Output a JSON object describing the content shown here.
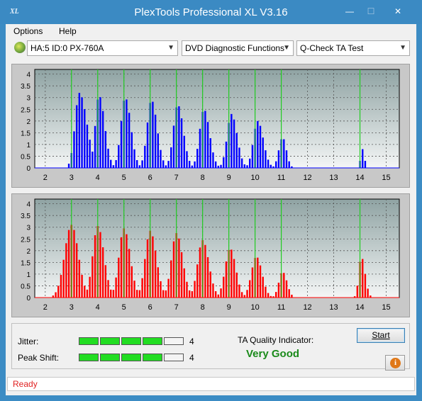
{
  "window": {
    "logo": "XL",
    "title": "PlexTools Professional XL V3.16",
    "min_glyph": "—",
    "max_glyph": "☐",
    "close_glyph": "✕"
  },
  "menu": {
    "options": "Options",
    "help": "Help"
  },
  "toolbar": {
    "drive": "HA:5 ID:0  PX-760A",
    "function": "DVD Diagnostic Functions",
    "test": "Q-Check TA Test"
  },
  "results": {
    "jitter_label": "Jitter:",
    "jitter_value": "4",
    "jitter_level": 4,
    "jitter_max": 5,
    "peak_label": "Peak Shift:",
    "peak_value": "4",
    "peak_level": 4,
    "peak_max": 5,
    "ta_label": "TA Quality Indicator:",
    "ta_value": "Very Good",
    "start_label": "Start",
    "info_glyph": "i"
  },
  "status": {
    "text": "Ready"
  },
  "colors": {
    "top_series": "#0000ff",
    "bottom_series": "#ff0000",
    "marker_lines": "#22cc22",
    "meter_on": "#22dd22",
    "ta_value": "#1a8a1a",
    "status_text": "#e02020"
  },
  "chart_data": [
    {
      "type": "area",
      "name": "top",
      "xlim": [
        1.6,
        15.5
      ],
      "ylim": [
        0,
        4.2
      ],
      "x_ticks": [
        2,
        3,
        4,
        5,
        6,
        7,
        8,
        9,
        10,
        11,
        12,
        13,
        14,
        15
      ],
      "y_ticks": [
        0,
        0.5,
        1,
        1.5,
        2,
        2.5,
        3,
        3.5,
        4
      ],
      "y_tick_labels": [
        "0",
        "0.5",
        "1",
        "1.5",
        "2",
        "2.5",
        "3",
        "3.5",
        "4"
      ],
      "marker_lines": [
        3,
        4,
        5,
        6,
        7,
        8,
        9,
        10,
        11,
        14
      ],
      "grid": true,
      "peaks": [
        {
          "center": 3.3,
          "height": 3.2,
          "left_width": 0.35,
          "right_width": 0.6
        },
        {
          "center": 4.05,
          "height": 3.1,
          "left_width": 0.3,
          "right_width": 0.45
        },
        {
          "center": 5.05,
          "height": 3.0,
          "left_width": 0.35,
          "right_width": 0.45
        },
        {
          "center": 6.05,
          "height": 2.9,
          "left_width": 0.35,
          "right_width": 0.45
        },
        {
          "center": 7.05,
          "height": 2.7,
          "left_width": 0.35,
          "right_width": 0.45
        },
        {
          "center": 8.05,
          "height": 2.5,
          "left_width": 0.35,
          "right_width": 0.45
        },
        {
          "center": 9.1,
          "height": 2.3,
          "left_width": 0.35,
          "right_width": 0.45
        },
        {
          "center": 10.1,
          "height": 2.0,
          "left_width": 0.35,
          "right_width": 0.45
        },
        {
          "center": 11.05,
          "height": 1.3,
          "left_width": 0.3,
          "right_width": 0.3
        },
        {
          "center": 14.1,
          "height": 0.8,
          "left_width": 0.15,
          "right_width": 0.15
        }
      ]
    },
    {
      "type": "area",
      "name": "bottom",
      "xlim": [
        1.6,
        15.5
      ],
      "ylim": [
        0,
        4.2
      ],
      "x_ticks": [
        2,
        3,
        4,
        5,
        6,
        7,
        8,
        9,
        10,
        11,
        12,
        13,
        14,
        15
      ],
      "y_ticks": [
        0,
        0.5,
        1,
        1.5,
        2,
        2.5,
        3,
        3.5,
        4
      ],
      "y_tick_labels": [
        "0",
        "0.5",
        "1",
        "1.5",
        "2",
        "2.5",
        "3",
        "3.5",
        "4"
      ],
      "marker_lines": [
        3,
        4,
        5,
        6,
        7,
        8,
        9,
        10,
        11,
        14
      ],
      "grid": true,
      "peaks": [
        {
          "center": 3.0,
          "height": 3.1,
          "left_width": 0.55,
          "right_width": 0.55
        },
        {
          "center": 4.0,
          "height": 3.05,
          "left_width": 0.4,
          "right_width": 0.5
        },
        {
          "center": 5.0,
          "height": 2.95,
          "left_width": 0.4,
          "right_width": 0.5
        },
        {
          "center": 6.0,
          "height": 2.85,
          "left_width": 0.4,
          "right_width": 0.5
        },
        {
          "center": 7.0,
          "height": 2.75,
          "left_width": 0.4,
          "right_width": 0.5
        },
        {
          "center": 8.0,
          "height": 2.45,
          "left_width": 0.4,
          "right_width": 0.5
        },
        {
          "center": 9.05,
          "height": 2.1,
          "left_width": 0.4,
          "right_width": 0.45
        },
        {
          "center": 10.05,
          "height": 1.75,
          "left_width": 0.4,
          "right_width": 0.45
        },
        {
          "center": 11.05,
          "height": 1.1,
          "left_width": 0.3,
          "right_width": 0.35
        },
        {
          "center": 14.05,
          "height": 1.75,
          "left_width": 0.2,
          "right_width": 0.3
        }
      ]
    }
  ]
}
